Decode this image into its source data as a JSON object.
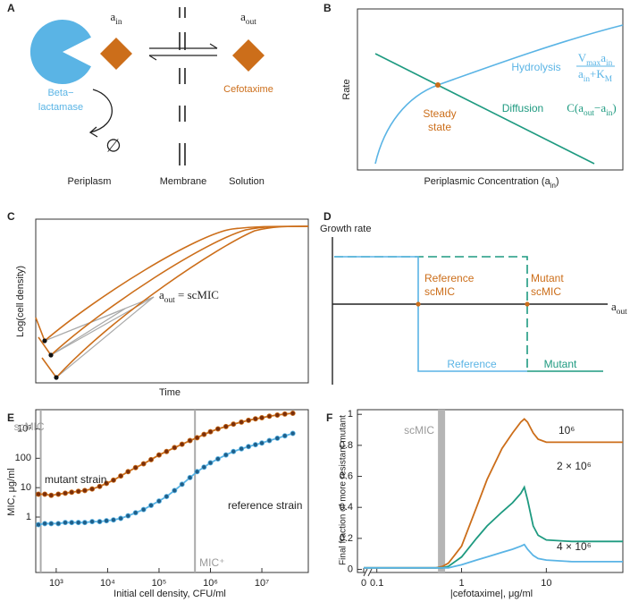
{
  "panels": {
    "A": {
      "label": "A",
      "a_in": [
        "a",
        "in"
      ],
      "a_out": [
        "a",
        "out"
      ],
      "enzyme": [
        "Beta−",
        "lactamase"
      ],
      "drug": "Cefotaxime",
      "null_symbol": "∅",
      "periplasm": "Periplasm",
      "membrane": "Membrane",
      "solution": "Solution"
    },
    "B": {
      "label": "B",
      "y_label": "Rate",
      "x_label": [
        "Periplasmic Concentration (a",
        "in",
        ")"
      ],
      "hydrolysis": "Hydrolysis",
      "hydrolysis_numerator": [
        "V",
        "max",
        "a",
        "in"
      ],
      "hydrolysis_denominator": [
        "a",
        "in",
        "+K",
        "M"
      ],
      "diffusion": "Diffusion",
      "diffusion_formula": [
        "C(a",
        "out",
        "−a",
        "in",
        ")"
      ],
      "steady_state": [
        "Steady",
        "state"
      ]
    },
    "C": {
      "label": "C",
      "y_label": "Log(cell density)",
      "x_label": "Time",
      "annotation": [
        "a",
        "out",
        " = scMIC"
      ]
    },
    "D": {
      "label": "D",
      "y_label": "Growth rate",
      "x_label": [
        "a",
        "out"
      ],
      "reference_mic": [
        "Reference",
        "scMIC"
      ],
      "mutant_mic": [
        "Mutant",
        "scMIC"
      ],
      "reference": "Reference",
      "mutant": "Mutant"
    }
  },
  "chart_data": [
    {
      "type": "scatter",
      "label": "E",
      "x_label": "Initial cell density, CFU/ml",
      "y_label": "MIC, μg/ml",
      "xlog": true,
      "ylog": true,
      "xlim": [
        400,
        80000000
      ],
      "ylim": [
        0.013,
        4500
      ],
      "xticks": [
        {
          "value": 1000,
          "label": "10³"
        },
        {
          "value": 10000,
          "label": "10⁴"
        },
        {
          "value": 100000,
          "label": "10⁵"
        },
        {
          "value": 1000000,
          "label": "10⁶"
        },
        {
          "value": 10000000,
          "label": "10⁷"
        }
      ],
      "yticks": [
        1,
        10,
        100,
        {
          "value": 1000,
          "label": "10³"
        }
      ],
      "vlines": [
        {
          "value": 500,
          "label": "scMIC"
        },
        {
          "value": 500000,
          "label": "MIC⁺"
        }
      ],
      "x": [
        450,
        600,
        800,
        1100,
        1500,
        2000,
        2700,
        3600,
        5000,
        7000,
        9500,
        13000,
        18000,
        25000,
        35000,
        50000,
        70000,
        100000,
        140000,
        200000,
        280000,
        400000,
        550000,
        750000,
        1000000,
        1400000,
        2000000,
        2800000,
        4000000,
        5500000,
        7500000,
        10000000,
        14000000,
        20000000,
        28000000,
        40000000
      ],
      "series": [
        {
          "name": "mutant strain",
          "color": "#cc6e1a",
          "marker_color": "#7a2e0a",
          "values": [
            6,
            6,
            5.5,
            6,
            6.5,
            7,
            7.5,
            8,
            9,
            11,
            14,
            18,
            25,
            35,
            48,
            65,
            90,
            130,
            170,
            230,
            300,
            400,
            500,
            650,
            800,
            1000,
            1200,
            1450,
            1700,
            1950,
            2200,
            2400,
            2700,
            2950,
            3200,
            3400
          ]
        },
        {
          "name": "reference strain",
          "color": "#5ab4e5",
          "marker_color": "#1f5f8a",
          "values": [
            0.55,
            0.6,
            0.6,
            0.6,
            0.65,
            0.65,
            0.65,
            0.65,
            0.7,
            0.7,
            0.75,
            0.8,
            0.9,
            1.1,
            1.4,
            1.8,
            2.5,
            3.5,
            5,
            8,
            13,
            22,
            35,
            50,
            70,
            95,
            130,
            170,
            210,
            250,
            290,
            330,
            400,
            480,
            580,
            700
          ]
        }
      ]
    },
    {
      "type": "line",
      "label": "F",
      "x_label": "|cefotaxime|, μg/ml",
      "y_label": "Final fraction of more resistant mutant",
      "xlog": true,
      "axis_break": true,
      "xlim": [
        0.085,
        80
      ],
      "ylim": [
        -0.02,
        1.03
      ],
      "xticks": [
        0,
        0.1,
        1,
        10
      ],
      "yticks": [
        0,
        0.2,
        0.4,
        0.6,
        0.8,
        1
      ],
      "bands": [
        {
          "value": 0.58,
          "label": "scMIC"
        }
      ],
      "x": [
        0,
        0.1,
        0.3,
        0.5,
        0.6,
        0.7,
        1,
        1.5,
        2,
        3,
        4,
        5,
        5.5,
        6,
        7,
        8,
        10,
        20,
        50,
        80
      ],
      "series": [
        {
          "name": "10⁶",
          "color": "#cc6e1a",
          "values": [
            0.01,
            0.01,
            0.01,
            0.01,
            0.02,
            0.04,
            0.15,
            0.4,
            0.58,
            0.78,
            0.88,
            0.95,
            0.97,
            0.95,
            0.88,
            0.84,
            0.82,
            0.82,
            0.82,
            0.82
          ]
        },
        {
          "name": "2 × 10⁶",
          "color": "#1e9a80",
          "values": [
            0.01,
            0.01,
            0.01,
            0.01,
            0.01,
            0.02,
            0.08,
            0.2,
            0.28,
            0.37,
            0.43,
            0.49,
            0.53,
            0.45,
            0.28,
            0.22,
            0.19,
            0.18,
            0.18,
            0.18
          ]
        },
        {
          "name": "4 × 10⁶",
          "color": "#5ab4e5",
          "values": [
            0.01,
            0.01,
            0.01,
            0.01,
            0.01,
            0.01,
            0.03,
            0.06,
            0.08,
            0.11,
            0.13,
            0.15,
            0.16,
            0.13,
            0.09,
            0.07,
            0.06,
            0.05,
            0.05,
            0.05
          ]
        }
      ]
    }
  ]
}
